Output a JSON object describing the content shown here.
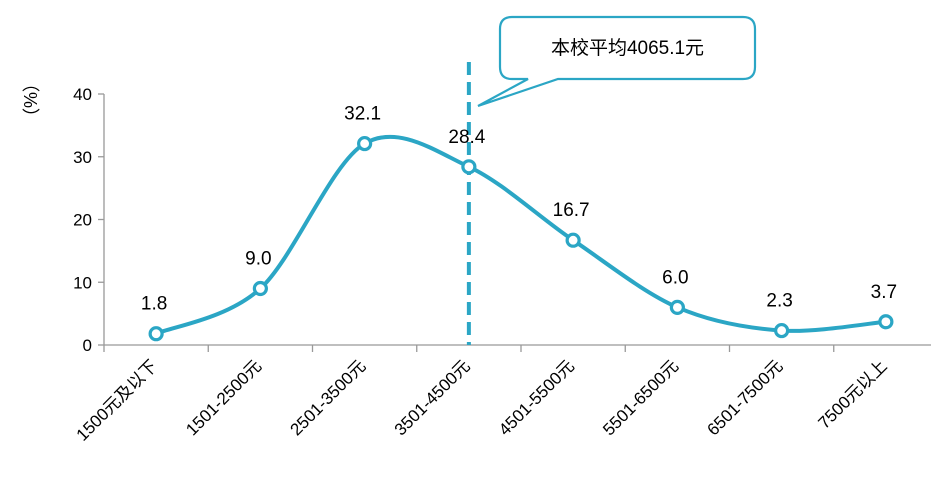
{
  "chart_data": {
    "type": "line",
    "smooth": true,
    "categories": [
      "1500元及以下",
      "1501-2500元",
      "2501-3500元",
      "3501-4500元",
      "4501-5500元",
      "5501-6500元",
      "6501-7500元",
      "7500元以上"
    ],
    "series": [
      {
        "values": [
          1.8,
          9.0,
          32.1,
          28.4,
          16.7,
          6.0,
          2.3,
          3.7
        ]
      }
    ],
    "data_labels": [
      "1.8",
      "9.0",
      "32.1",
      "28.4",
      "16.7",
      "6.0",
      "2.3",
      "3.7"
    ],
    "ylabel": "（%）",
    "ylim": [
      0,
      40
    ],
    "yticks": [
      0,
      10,
      20,
      30,
      40
    ],
    "grid": false,
    "legend": "none",
    "reference_line": {
      "value": 4065.1,
      "position_category_index": 3.0,
      "style": "dashed",
      "label": "本校平均4065.1元"
    },
    "colors": {
      "line": "#2BA6C5",
      "marker_fill": "#ffffff",
      "axis": "#999999",
      "callout_border": "#2BA6C5"
    }
  }
}
